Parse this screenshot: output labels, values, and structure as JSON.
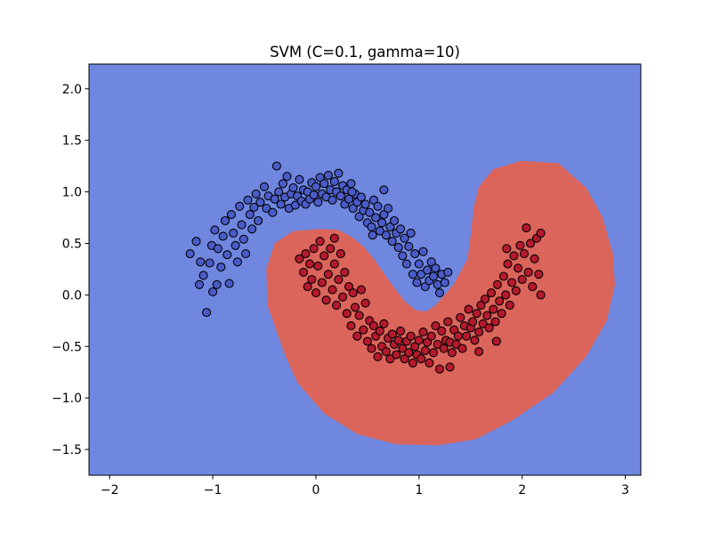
{
  "chart_data": {
    "type": "scatter",
    "title": "SVM (C=0.1, gamma=10)",
    "xlabel": "",
    "ylabel": "",
    "xlim": [
      -2.2,
      3.15
    ],
    "ylim": [
      -1.75,
      2.24
    ],
    "x_ticks": [
      -2,
      -1,
      0,
      1,
      2,
      3
    ],
    "x_tick_labels": [
      "−2",
      "−1",
      "0",
      "1",
      "2",
      "3"
    ],
    "y_ticks": [
      2.0,
      1.5,
      1.0,
      0.5,
      0.0,
      -0.5,
      -1.0,
      -1.5
    ],
    "y_tick_labels": [
      "2.0",
      "1.5",
      "1.0",
      "0.5",
      "0.0",
      "−0.5",
      "−1.0",
      "−1.5"
    ],
    "grid": false,
    "legend": "none",
    "background_region_color": "#7087e0",
    "decision_region_color": "#db655b",
    "decision_region_boundary": [
      [
        0.05,
        0.64
      ],
      [
        0.22,
        0.63
      ],
      [
        0.35,
        0.56
      ],
      [
        0.46,
        0.47
      ],
      [
        0.56,
        0.35
      ],
      [
        0.66,
        0.21
      ],
      [
        0.76,
        0.07
      ],
      [
        0.86,
        -0.06
      ],
      [
        0.97,
        -0.15
      ],
      [
        1.07,
        -0.16
      ],
      [
        1.16,
        -0.1
      ],
      [
        1.25,
        0.0
      ],
      [
        1.34,
        0.11
      ],
      [
        1.47,
        0.35
      ],
      [
        1.5,
        0.57
      ],
      [
        1.53,
        0.85
      ],
      [
        1.58,
        1.05
      ],
      [
        1.72,
        1.22
      ],
      [
        1.99,
        1.3
      ],
      [
        2.35,
        1.28
      ],
      [
        2.62,
        1.04
      ],
      [
        2.78,
        0.75
      ],
      [
        2.88,
        0.4
      ],
      [
        2.9,
        0.1
      ],
      [
        2.82,
        -0.25
      ],
      [
        2.62,
        -0.6
      ],
      [
        2.3,
        -0.95
      ],
      [
        1.9,
        -1.22
      ],
      [
        1.55,
        -1.4
      ],
      [
        1.18,
        -1.46
      ],
      [
        0.78,
        -1.45
      ],
      [
        0.4,
        -1.35
      ],
      [
        0.08,
        -1.15
      ],
      [
        -0.18,
        -0.85
      ],
      [
        -0.3,
        -0.58
      ],
      [
        -0.47,
        -0.1
      ],
      [
        -0.48,
        0.25
      ],
      [
        -0.4,
        0.5
      ],
      [
        -0.22,
        0.62
      ]
    ],
    "series": [
      {
        "name": "",
        "color": "#4a5bc8",
        "points": [
          [
            -1.22,
            0.4
          ],
          [
            -1.16,
            0.52
          ],
          [
            -1.12,
            0.32
          ],
          [
            -1.09,
            0.19
          ],
          [
            -1.03,
            0.31
          ],
          [
            -1.01,
            0.48
          ],
          [
            -1.06,
            -0.17
          ],
          [
            -1.13,
            0.1
          ],
          [
            -0.98,
            0.63
          ],
          [
            -0.95,
            0.45
          ],
          [
            -0.92,
            0.27
          ],
          [
            -0.9,
            0.57
          ],
          [
            -0.88,
            0.72
          ],
          [
            -0.86,
            0.39
          ],
          [
            -0.84,
            0.11
          ],
          [
            -0.82,
            0.78
          ],
          [
            -0.8,
            0.6
          ],
          [
            -0.78,
            0.48
          ],
          [
            -0.76,
            0.32
          ],
          [
            -0.74,
            0.86
          ],
          [
            -0.72,
            0.68
          ],
          [
            -0.7,
            0.54
          ],
          [
            -0.68,
            0.4
          ],
          [
            -0.66,
            0.92
          ],
          [
            -0.64,
            0.78
          ],
          [
            -0.62,
            0.64
          ],
          [
            -0.6,
            0.85
          ],
          [
            -0.58,
            0.98
          ],
          [
            -0.56,
            0.72
          ],
          [
            -0.54,
            0.9
          ],
          [
            -0.5,
            1.05
          ],
          [
            -0.48,
            0.84
          ],
          [
            -0.46,
            0.96
          ],
          [
            -0.42,
            0.8
          ],
          [
            -0.4,
            0.93
          ],
          [
            -0.38,
            1.25
          ],
          [
            -0.36,
            1.0
          ],
          [
            -0.34,
            0.88
          ],
          [
            -0.32,
            1.08
          ],
          [
            -0.3,
            0.95
          ],
          [
            -0.28,
            1.15
          ],
          [
            -0.26,
            0.84
          ],
          [
            -0.24,
            0.98
          ],
          [
            -0.22,
            1.04
          ],
          [
            -0.2,
            0.87
          ],
          [
            -0.18,
            0.96
          ],
          [
            -0.16,
            1.12
          ],
          [
            -0.14,
            0.91
          ],
          [
            -0.12,
            1.02
          ],
          [
            -0.1,
            0.88
          ],
          [
            -0.08,
            1.0
          ],
          [
            -0.06,
            0.93
          ],
          [
            -0.04,
            1.09
          ],
          [
            -0.02,
            0.97
          ],
          [
            0.0,
            1.05
          ],
          [
            0.02,
            0.9
          ],
          [
            0.04,
            1.14
          ],
          [
            0.06,
            0.98
          ],
          [
            0.08,
            1.08
          ],
          [
            0.1,
            0.95
          ],
          [
            0.12,
            1.16
          ],
          [
            0.14,
            1.02
          ],
          [
            0.16,
            0.92
          ],
          [
            0.18,
            1.1
          ],
          [
            0.2,
            1.0
          ],
          [
            0.22,
            1.18
          ],
          [
            0.24,
            0.96
          ],
          [
            0.26,
            1.06
          ],
          [
            0.28,
            0.88
          ],
          [
            0.3,
            1.02
          ],
          [
            0.32,
            0.93
          ],
          [
            0.34,
            1.08
          ],
          [
            0.36,
            0.84
          ],
          [
            0.38,
            0.98
          ],
          [
            0.4,
            0.9
          ],
          [
            0.42,
            0.76
          ],
          [
            0.44,
            0.95
          ],
          [
            0.46,
            0.82
          ],
          [
            0.48,
            0.88
          ],
          [
            0.5,
            0.7
          ],
          [
            0.52,
            0.8
          ],
          [
            0.54,
            0.66
          ],
          [
            0.56,
            0.92
          ],
          [
            0.58,
            0.75
          ],
          [
            0.6,
            0.86
          ],
          [
            0.62,
            0.62
          ],
          [
            0.64,
            0.7
          ],
          [
            0.66,
            0.78
          ],
          [
            0.68,
            0.58
          ],
          [
            0.7,
            0.84
          ],
          [
            0.72,
            0.66
          ],
          [
            0.74,
            0.52
          ],
          [
            0.76,
            0.72
          ],
          [
            0.78,
            0.6
          ],
          [
            0.8,
            0.46
          ],
          [
            0.82,
            0.64
          ],
          [
            0.84,
            0.38
          ],
          [
            0.86,
            0.55
          ],
          [
            0.88,
            0.3
          ],
          [
            0.9,
            0.47
          ],
          [
            0.92,
            0.6
          ],
          [
            0.94,
            0.2
          ],
          [
            0.96,
            0.4
          ],
          [
            0.98,
            0.12
          ],
          [
            1.0,
            0.3
          ],
          [
            1.02,
            0.2
          ],
          [
            1.04,
            0.42
          ],
          [
            1.06,
            0.08
          ],
          [
            1.08,
            0.24
          ],
          [
            1.1,
            0.14
          ],
          [
            1.12,
            0.32
          ],
          [
            1.14,
            0.18
          ],
          [
            1.16,
            0.26
          ],
          [
            1.18,
            0.1
          ],
          [
            1.2,
            0.02
          ],
          [
            1.22,
            0.2
          ],
          [
            1.25,
            0.12
          ],
          [
            1.28,
            0.22
          ],
          [
            0.55,
            0.58
          ],
          [
            0.35,
            1.0
          ],
          [
            0.66,
            1.02
          ],
          [
            -0.96,
            0.1
          ],
          [
            -1.0,
            0.03
          ]
        ]
      },
      {
        "name": "",
        "color": "#b5192d",
        "points": [
          [
            -0.16,
            0.35
          ],
          [
            -0.12,
            0.22
          ],
          [
            -0.1,
            0.4
          ],
          [
            -0.08,
            0.08
          ],
          [
            -0.06,
            0.3
          ],
          [
            -0.04,
            0.15
          ],
          [
            -0.02,
            0.45
          ],
          [
            0.0,
            0.02
          ],
          [
            0.02,
            0.28
          ],
          [
            0.04,
            0.52
          ],
          [
            0.06,
            0.12
          ],
          [
            0.08,
            0.38
          ],
          [
            0.1,
            -0.05
          ],
          [
            0.12,
            0.2
          ],
          [
            0.14,
            0.45
          ],
          [
            0.16,
            0.05
          ],
          [
            0.18,
            0.3
          ],
          [
            0.2,
            -0.1
          ],
          [
            0.22,
            0.15
          ],
          [
            0.24,
            0.4
          ],
          [
            0.26,
            -0.02
          ],
          [
            0.28,
            0.22
          ],
          [
            0.3,
            -0.18
          ],
          [
            0.32,
            0.08
          ],
          [
            0.34,
            -0.3
          ],
          [
            0.36,
            0.02
          ],
          [
            0.38,
            -0.12
          ],
          [
            0.4,
            -0.4
          ],
          [
            0.42,
            -0.2
          ],
          [
            0.44,
            0.05
          ],
          [
            0.46,
            -0.34
          ],
          [
            0.48,
            -0.08
          ],
          [
            0.5,
            -0.45
          ],
          [
            0.52,
            -0.25
          ],
          [
            0.54,
            -0.52
          ],
          [
            0.56,
            -0.3
          ],
          [
            0.58,
            -0.4
          ],
          [
            0.6,
            -0.6
          ],
          [
            0.62,
            -0.35
          ],
          [
            0.64,
            -0.5
          ],
          [
            0.66,
            -0.28
          ],
          [
            0.68,
            -0.55
          ],
          [
            0.7,
            -0.42
          ],
          [
            0.72,
            -0.62
          ],
          [
            0.74,
            -0.38
          ],
          [
            0.76,
            -0.48
          ],
          [
            0.78,
            -0.58
          ],
          [
            0.8,
            -0.44
          ],
          [
            0.82,
            -0.35
          ],
          [
            0.84,
            -0.52
          ],
          [
            0.86,
            -0.62
          ],
          [
            0.88,
            -0.45
          ],
          [
            0.9,
            -0.56
          ],
          [
            0.92,
            -0.4
          ],
          [
            0.94,
            -0.66
          ],
          [
            0.96,
            -0.5
          ],
          [
            0.98,
            -0.58
          ],
          [
            1.0,
            -0.44
          ],
          [
            1.02,
            -0.62
          ],
          [
            1.04,
            -0.36
          ],
          [
            1.06,
            -0.54
          ],
          [
            1.08,
            -0.46
          ],
          [
            1.1,
            -0.66
          ],
          [
            1.12,
            -0.4
          ],
          [
            1.14,
            -0.56
          ],
          [
            1.16,
            -0.3
          ],
          [
            1.18,
            -0.48
          ],
          [
            1.2,
            -0.72
          ],
          [
            1.22,
            -0.35
          ],
          [
            1.24,
            -0.52
          ],
          [
            1.26,
            -0.44
          ],
          [
            1.28,
            -0.26
          ],
          [
            1.3,
            -0.46
          ],
          [
            1.32,
            -0.56
          ],
          [
            1.34,
            -0.34
          ],
          [
            1.36,
            -0.48
          ],
          [
            1.38,
            -0.4
          ],
          [
            1.4,
            -0.22
          ],
          [
            1.42,
            -0.52
          ],
          [
            1.44,
            -0.3
          ],
          [
            1.46,
            -0.4
          ],
          [
            1.48,
            -0.14
          ],
          [
            1.5,
            -0.32
          ],
          [
            1.52,
            -0.26
          ],
          [
            1.54,
            -0.44
          ],
          [
            1.56,
            -0.18
          ],
          [
            1.58,
            -0.36
          ],
          [
            1.6,
            -0.1
          ],
          [
            1.62,
            -0.28
          ],
          [
            1.64,
            -0.04
          ],
          [
            1.66,
            -0.2
          ],
          [
            1.68,
            -0.32
          ],
          [
            1.7,
            0.02
          ],
          [
            1.72,
            -0.14
          ],
          [
            1.74,
            -0.26
          ],
          [
            1.76,
            0.1
          ],
          [
            1.78,
            -0.06
          ],
          [
            1.8,
            -0.18
          ],
          [
            1.82,
            0.18
          ],
          [
            1.84,
            0.0
          ],
          [
            1.86,
            0.3
          ],
          [
            1.88,
            -0.1
          ],
          [
            1.9,
            0.12
          ],
          [
            1.92,
            0.38
          ],
          [
            1.94,
            0.04
          ],
          [
            1.96,
            0.26
          ],
          [
            1.98,
            0.48
          ],
          [
            2.0,
            0.15
          ],
          [
            2.02,
            0.4
          ],
          [
            2.04,
            0.65
          ],
          [
            2.06,
            0.22
          ],
          [
            2.08,
            0.5
          ],
          [
            2.1,
            0.08
          ],
          [
            2.12,
            0.35
          ],
          [
            2.14,
            0.55
          ],
          [
            2.16,
            0.2
          ],
          [
            2.18,
            0.0
          ],
          [
            2.18,
            0.6
          ],
          [
            1.75,
            -0.45
          ],
          [
            1.3,
            -0.7
          ],
          [
            1.85,
            0.45
          ],
          [
            0.18,
            0.55
          ],
          [
            1.58,
            -0.55
          ]
        ]
      }
    ]
  }
}
